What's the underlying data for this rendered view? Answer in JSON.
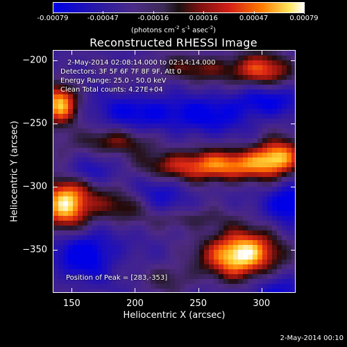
{
  "colorbar": {
    "ticks": [
      "-0.00079",
      "-0.00047",
      "-0.00016",
      "0.00016",
      "0.00047",
      "0.00079"
    ],
    "units_prefix": "(photons cm",
    "units_exp1": "-2",
    "units_mid": " s",
    "units_exp2": "-1",
    "units_mid2": " asec",
    "units_exp3": "-2",
    "units_suffix": ")"
  },
  "overlay": {
    "line1": "2-May-2014 02:08:14.000 to 02:14:14.000",
    "line2": "Detectors: 3F 5F 6F 7F 8F 9F, Att 0",
    "line3": "Energy Range: 25.0 - 50.0 keV",
    "line4": "Clean    Total counts: 4.27E+04",
    "peak": "Position of Peak = [283,-353]"
  },
  "footer": "2-May-2014 00:10",
  "chart_data": {
    "type": "heatmap",
    "title": "Reconstructed RHESSI Image",
    "xlabel": "Heliocentric X (arcsec)",
    "ylabel": "Heliocentric Y (arcsec)",
    "xlim": [
      135,
      327
    ],
    "ylim": [
      -384,
      -192
    ],
    "xticks": [
      150,
      200,
      250,
      300
    ],
    "yticks": [
      -200,
      -250,
      -300,
      -350
    ],
    "xtick_labels": [
      "150",
      "200",
      "250",
      "300"
    ],
    "ytick_labels": [
      "−200",
      "−250",
      "−300",
      "−350"
    ],
    "colorbar_range": [
      -0.00079,
      0.00079
    ],
    "peak_position": [
      283,
      -353
    ],
    "grid": false,
    "blobs": [
      {
        "x": 283,
        "y": -353,
        "amp": 1.0,
        "sx": 20,
        "sy": 13
      },
      {
        "x": 145,
        "y": -312,
        "amp": 0.9,
        "sx": 14,
        "sy": 15
      },
      {
        "x": 140,
        "y": -235,
        "amp": 0.8,
        "sx": 10,
        "sy": 12
      },
      {
        "x": 262,
        "y": -283,
        "amp": 0.75,
        "sx": 36,
        "sy": 9
      },
      {
        "x": 312,
        "y": -275,
        "amp": 0.7,
        "sx": 14,
        "sy": 10
      },
      {
        "x": 300,
        "y": -208,
        "amp": 0.55,
        "sx": 16,
        "sy": 10
      },
      {
        "x": 250,
        "y": -206,
        "amp": 0.35,
        "sx": 30,
        "sy": 8
      },
      {
        "x": 180,
        "y": -264,
        "amp": 0.35,
        "sx": 26,
        "sy": 7
      },
      {
        "x": 186,
        "y": -315,
        "amp": 0.35,
        "sx": 18,
        "sy": 10
      },
      {
        "x": 228,
        "y": -372,
        "amp": 0.25,
        "sx": 14,
        "sy": 9
      },
      {
        "x": 243,
        "y": -325,
        "amp": 0.25,
        "sx": 20,
        "sy": 6
      },
      {
        "x": 160,
        "y": -352,
        "amp": -0.75,
        "sx": 16,
        "sy": 13
      },
      {
        "x": 322,
        "y": -312,
        "amp": -0.8,
        "sx": 12,
        "sy": 10
      },
      {
        "x": 300,
        "y": -232,
        "amp": -0.6,
        "sx": 20,
        "sy": 9
      },
      {
        "x": 205,
        "y": -240,
        "amp": -0.55,
        "sx": 26,
        "sy": 9
      },
      {
        "x": 255,
        "y": -245,
        "amp": -0.5,
        "sx": 20,
        "sy": 10
      },
      {
        "x": 220,
        "y": -305,
        "amp": -0.4,
        "sx": 16,
        "sy": 10
      },
      {
        "x": 160,
        "y": -288,
        "amp": -0.5,
        "sx": 14,
        "sy": 7
      },
      {
        "x": 310,
        "y": -383,
        "amp": -0.45,
        "sx": 16,
        "sy": 9
      }
    ]
  }
}
